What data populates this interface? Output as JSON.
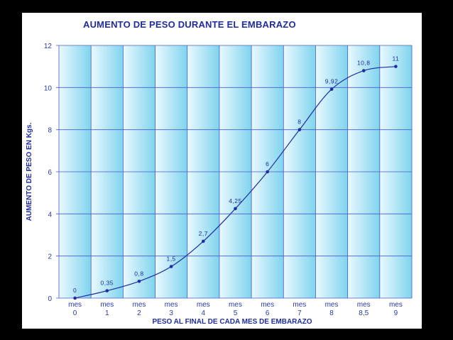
{
  "chart_data": {
    "type": "line",
    "title": "AUMENTO DE PESO DURANTE EL EMBARAZO",
    "xlabel": "PESO AL FINAL DE CADA MES DE EMBARAZO",
    "ylabel": "AUMENTO DE PESO EN Kgs.",
    "categories": [
      {
        "top": "mes",
        "bottom": "0"
      },
      {
        "top": "mes",
        "bottom": "1"
      },
      {
        "top": "mes",
        "bottom": "2"
      },
      {
        "top": "mes",
        "bottom": "3"
      },
      {
        "top": "mes",
        "bottom": "4"
      },
      {
        "top": "mes",
        "bottom": "5"
      },
      {
        "top": "mes",
        "bottom": "6"
      },
      {
        "top": "mes",
        "bottom": "7"
      },
      {
        "top": "mes",
        "bottom": "8"
      },
      {
        "top": "mes",
        "bottom": "8,5"
      },
      {
        "top": "mes",
        "bottom": "9"
      }
    ],
    "values": [
      0,
      0.35,
      0.8,
      1.5,
      2.7,
      4.25,
      6,
      8,
      9.92,
      10.8,
      11
    ],
    "value_labels": [
      "0",
      "0,35",
      "0,8",
      "1,5",
      "2,7",
      "4,25",
      "6",
      "8",
      "9,92",
      "10,8",
      "11"
    ],
    "ylim": [
      0,
      12
    ],
    "yticks": [
      "0",
      "2",
      "4",
      "6",
      "8",
      "10",
      "12"
    ],
    "grid": true,
    "legend": "none",
    "colors": {
      "line": "#1f2d9e",
      "text": "#1f2d9e",
      "grid": "#4a5bc4",
      "plot_background_left": "#eaf9ff",
      "plot_background_right": "#7fd4ee",
      "page_background": "#000000"
    }
  }
}
